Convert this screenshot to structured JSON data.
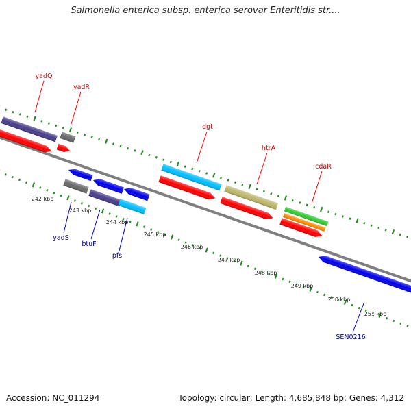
{
  "title": "Salmonella enterica subsp. enterica serovar Enteritidis str....",
  "accession": "Accession: NC_011294",
  "summary": "Topology: circular; Length: 4,685,848 bp; Genes: 4,312",
  "colors": {
    "forward_label": "#cc0000",
    "reverse_label": "#00008b",
    "backbone": "#7f7f7f",
    "ticks": "#228b22",
    "cds": "#ff0000",
    "purple": "#483d8b",
    "gray": "#696969",
    "blue": "#0000ee",
    "cyan": "#00bfff",
    "khaki": "#bdb76b",
    "green": "#32cd32",
    "orange": "#ff8c00"
  },
  "forward_labels": [
    "yadQ",
    "yadR",
    "dgt",
    "htrA",
    "cdaR"
  ],
  "reverse_labels": [
    "yadS",
    "btuF",
    "pfs",
    "SEN0216"
  ],
  "kbp_labels": [
    "242 kbp",
    "243 kbp",
    "244 kbp",
    "245 kbp",
    "246 kbp",
    "247 kbp",
    "248 kbp",
    "249 kbp",
    "250 kbp",
    "251 kbp"
  ]
}
